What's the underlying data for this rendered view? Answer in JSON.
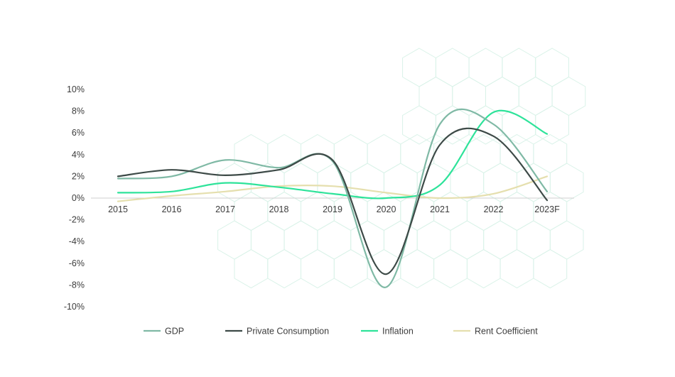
{
  "chart_data": {
    "type": "line",
    "categories": [
      "2015",
      "2016",
      "2017",
      "2018",
      "2019",
      "2020",
      "2021",
      "2022",
      "2023F"
    ],
    "y_ticks": [
      "10%",
      "8%",
      "6%",
      "4%",
      "2%",
      "0%",
      "-2%",
      "-4%",
      "-6%",
      "-8%",
      "-10%"
    ],
    "ylim": [
      -10,
      10
    ],
    "grid": false,
    "legend_position": "bottom",
    "series": [
      {
        "name": "GDP",
        "color": "#7fb9a5",
        "values": [
          1.8,
          2.0,
          3.5,
          2.8,
          3.4,
          -8.2,
          6.8,
          6.8,
          0.6
        ]
      },
      {
        "name": "Private Consumption",
        "color": "#3d4a47",
        "values": [
          2.0,
          2.6,
          2.1,
          2.6,
          3.5,
          -7.0,
          4.9,
          5.7,
          -0.2
        ]
      },
      {
        "name": "Inflation",
        "color": "#2ee39a",
        "values": [
          0.5,
          0.6,
          1.4,
          1.0,
          0.4,
          0.0,
          1.2,
          7.9,
          5.9
        ]
      },
      {
        "name": "Rent Coefficient",
        "color": "#e5dfae",
        "values": [
          -0.3,
          0.2,
          0.6,
          1.1,
          1.1,
          0.5,
          0.0,
          0.4,
          2.0
        ]
      }
    ]
  }
}
